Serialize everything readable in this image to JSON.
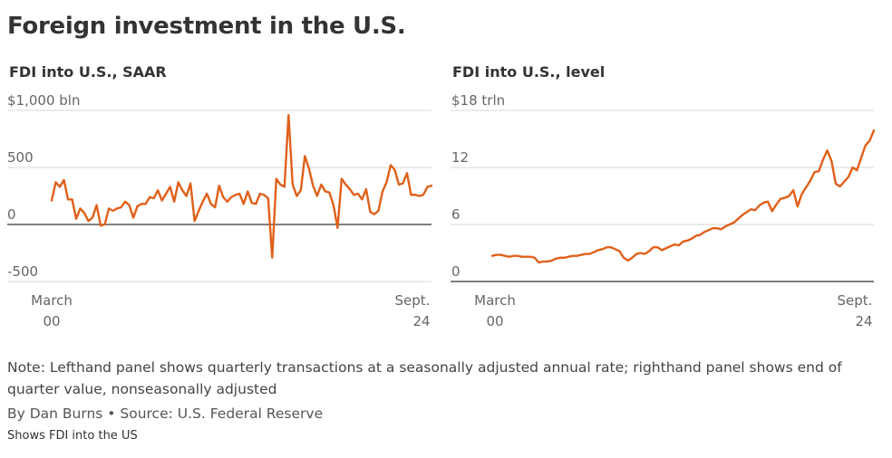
{
  "title": "Foreign investment in the U.S.",
  "note": "Note: Lefthand panel shows quarterly transactions at a seasonally adjusted annual rate; righthand panel shows end of quarter value, nonseasonally adjusted",
  "byline": "By Dan Burns • Source: U.S. Federal Reserve",
  "description": "Shows FDI into the US",
  "colors": {
    "line": "#e0601a",
    "grid": "#d7d7d7",
    "zero": "#333333"
  },
  "chart_data": [
    {
      "type": "line",
      "title": "FDI into U.S., SAAR",
      "ylim": [
        -500,
        1000
      ],
      "yticks": [
        {
          "value": 1000,
          "label": "$1,000 bln"
        },
        {
          "value": 500,
          "label": "500"
        },
        {
          "value": 0,
          "label": "0"
        },
        {
          "value": -500,
          "label": "-500"
        }
      ],
      "xtick_labels": [
        {
          "line1": "March",
          "line2": "00"
        },
        {
          "line1": "Sept.",
          "line2": "24"
        }
      ],
      "x_range": [
        "2000-Q1",
        "2024-Q3"
      ],
      "series": [
        {
          "values": [
            210,
            370,
            330,
            390,
            220,
            220,
            50,
            140,
            100,
            30,
            60,
            170,
            -10,
            0,
            140,
            120,
            140,
            150,
            200,
            170,
            60,
            160,
            180,
            180,
            240,
            230,
            300,
            210,
            270,
            330,
            200,
            370,
            300,
            250,
            360,
            30,
            120,
            200,
            270,
            180,
            150,
            340,
            240,
            200,
            240,
            260,
            270,
            180,
            290,
            190,
            180,
            270,
            260,
            230,
            -290,
            400,
            350,
            330,
            960,
            350,
            250,
            300,
            600,
            490,
            340,
            250,
            350,
            290,
            280,
            170,
            -30,
            400,
            350,
            310,
            260,
            270,
            220,
            310,
            110,
            90,
            120,
            290,
            370,
            520,
            480,
            350,
            360,
            450,
            260,
            260,
            250,
            260,
            330,
            340
          ]
        }
      ]
    },
    {
      "type": "line",
      "title": "FDI into U.S., level",
      "ylim": [
        0,
        18
      ],
      "yticks": [
        {
          "value": 18,
          "label": "$18 trln"
        },
        {
          "value": 12,
          "label": "12"
        },
        {
          "value": 6,
          "label": "6"
        },
        {
          "value": 0,
          "label": "0"
        }
      ],
      "xtick_labels": [
        {
          "line1": "March",
          "line2": "00"
        },
        {
          "line1": "Sept.",
          "line2": "24"
        }
      ],
      "x_range": [
        "2000-Q1",
        "2024-Q3"
      ],
      "series": [
        {
          "values": [
            2.7,
            2.8,
            2.8,
            2.7,
            2.6,
            2.7,
            2.7,
            2.6,
            2.6,
            2.6,
            2.5,
            2.0,
            2.1,
            2.1,
            2.2,
            2.4,
            2.5,
            2.5,
            2.6,
            2.7,
            2.7,
            2.8,
            2.9,
            2.9,
            3.1,
            3.3,
            3.4,
            3.6,
            3.6,
            3.4,
            3.2,
            2.5,
            2.2,
            2.5,
            2.9,
            3.0,
            2.9,
            3.2,
            3.6,
            3.6,
            3.3,
            3.5,
            3.7,
            3.9,
            3.8,
            4.2,
            4.3,
            4.5,
            4.8,
            4.9,
            5.2,
            5.4,
            5.6,
            5.6,
            5.5,
            5.8,
            6.0,
            6.2,
            6.6,
            7.0,
            7.3,
            7.6,
            7.5,
            8.0,
            8.3,
            8.4,
            7.4,
            8.1,
            8.7,
            8.8,
            9.0,
            9.6,
            7.9,
            9.2,
            9.9,
            10.6,
            11.5,
            11.6,
            12.8,
            13.8,
            12.7,
            10.3,
            10.0,
            10.5,
            11.0,
            12.0,
            11.7,
            13.0,
            14.3,
            14.8,
            15.9
          ]
        }
      ]
    }
  ]
}
